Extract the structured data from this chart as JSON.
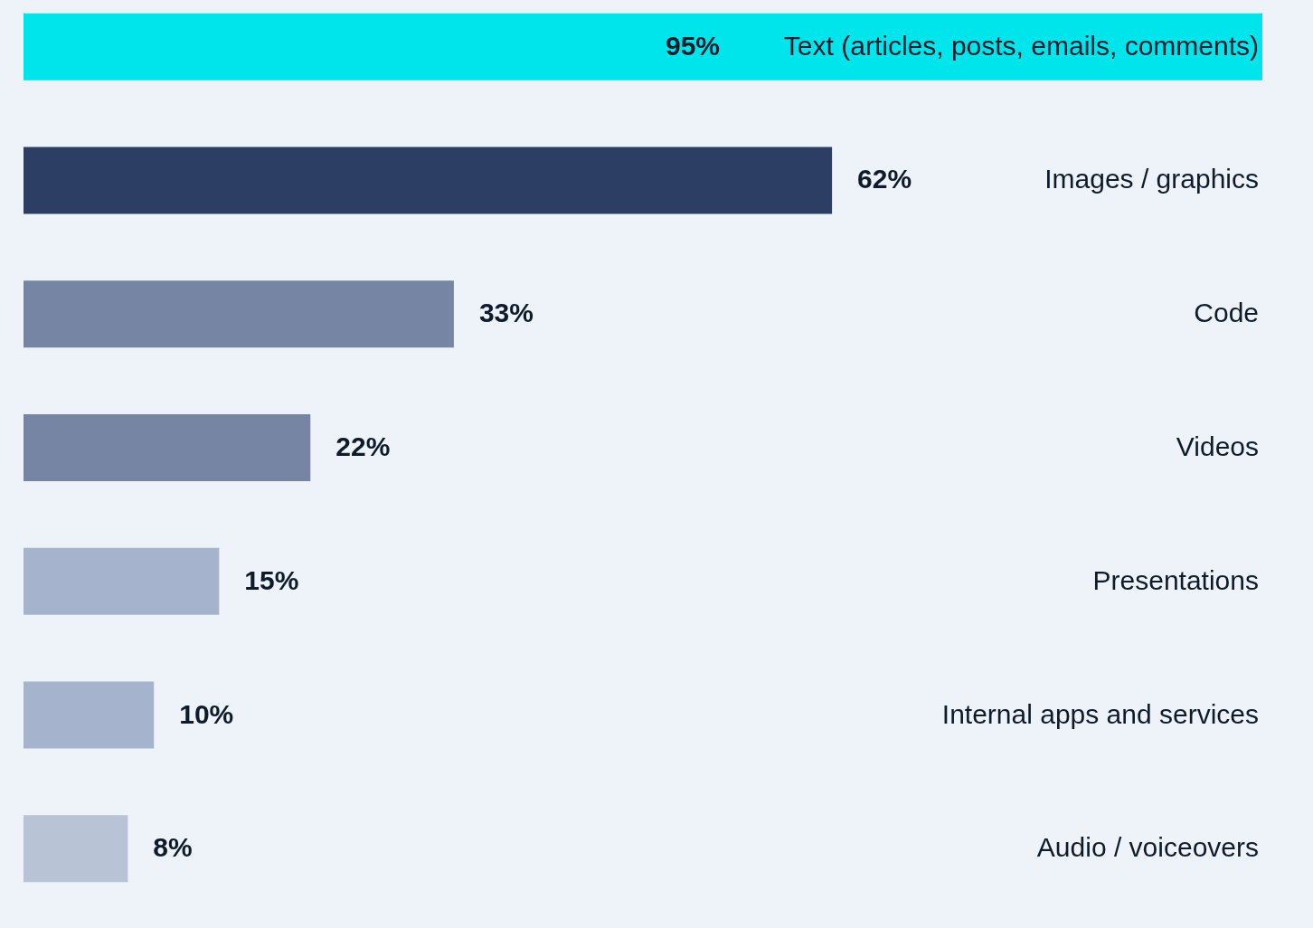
{
  "chart_data": {
    "type": "bar",
    "orientation": "horizontal",
    "categories": [
      "Text (articles, posts, emails, comments)",
      "Images / graphics",
      "Code",
      "Videos",
      "Presentations",
      "Internal apps and services",
      "Audio / voiceovers"
    ],
    "values": [
      95,
      62,
      33,
      22,
      15,
      10,
      8
    ],
    "value_labels": [
      "95%",
      "62%",
      "33%",
      "22%",
      "15%",
      "10%",
      "8%"
    ],
    "colors": [
      "#00e5ec",
      "#2c3e63",
      "#7585a3",
      "#7585a3",
      "#a5b3cc",
      "#a5b3cc",
      "#b8c3d6"
    ],
    "tick_labels": false
  }
}
